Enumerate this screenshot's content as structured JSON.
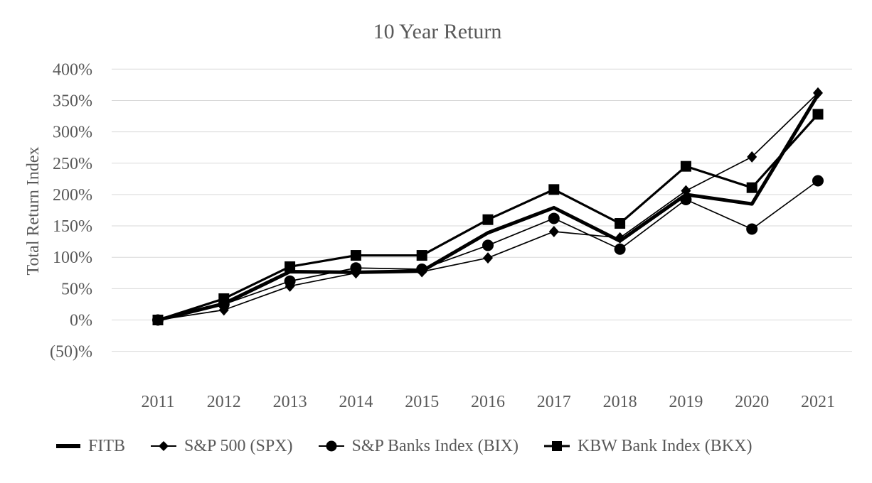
{
  "chart_data": {
    "type": "line",
    "title": "10 Year Return",
    "ylabel": "Total Return Index",
    "xlabel": "",
    "categories": [
      "2011",
      "2012",
      "2013",
      "2014",
      "2015",
      "2016",
      "2017",
      "2018",
      "2019",
      "2020",
      "2021"
    ],
    "series": [
      {
        "name": "FITB",
        "marker": "none",
        "line_width": "thick",
        "values": [
          0,
          26,
          77,
          76,
          78,
          139,
          179,
          126,
          200,
          185,
          359
        ]
      },
      {
        "name": "S&P 500 (SPX)",
        "marker": "diamond",
        "line_width": "thin",
        "values": [
          0,
          16,
          54,
          75,
          77,
          99,
          141,
          131,
          206,
          260,
          362
        ]
      },
      {
        "name": "S&P Banks Index (BIX)",
        "marker": "circle",
        "line_width": "thin",
        "values": [
          0,
          25,
          62,
          83,
          81,
          119,
          162,
          113,
          192,
          145,
          222
        ]
      },
      {
        "name": "KBW Bank Index (BKX)",
        "marker": "square",
        "line_width": "medium",
        "values": [
          0,
          34,
          85,
          103,
          103,
          160,
          208,
          154,
          245,
          211,
          328
        ]
      }
    ],
    "y_tick_labels": [
      "400%",
      "350%",
      "300%",
      "250%",
      "200%",
      "150%",
      "100%",
      "50%",
      "0%",
      "(50)%"
    ],
    "y_tick_values": [
      400,
      350,
      300,
      250,
      200,
      150,
      100,
      50,
      0,
      -50
    ],
    "ylim": [
      -50,
      400
    ],
    "grid": true,
    "legend_position": "bottom",
    "colors": {
      "series": "#000000",
      "gridlines": "#d9d9d9",
      "text": "#595959"
    }
  }
}
